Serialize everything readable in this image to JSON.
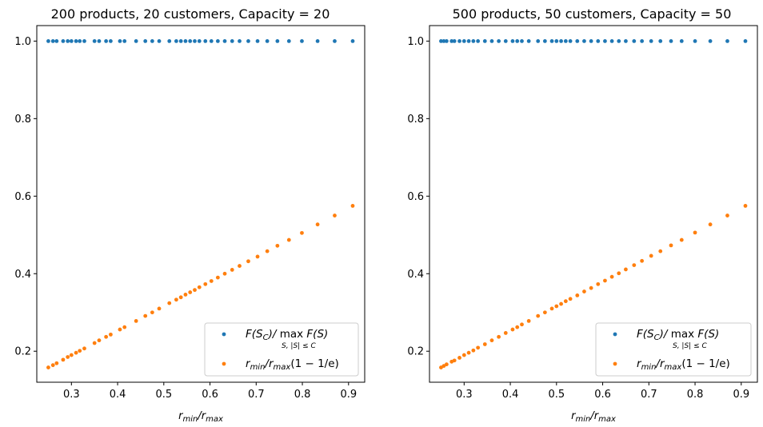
{
  "chart_data": [
    {
      "type": "scatter",
      "title": "200 products, 20 customers, Capacity = 20",
      "xlabel_main": "r",
      "xlabel_sub1": "min",
      "xlabel_sep": "/r",
      "xlabel_sub2": "max",
      "xlim": [
        0.225,
        0.935
      ],
      "ylim": [
        0.12,
        1.04
      ],
      "xticks": [
        0.3,
        0.4,
        0.5,
        0.6,
        0.7,
        0.8,
        0.9
      ],
      "xtick_labels": [
        "0.3",
        "0.4",
        "0.5",
        "0.6",
        "0.7",
        "0.8",
        "0.9"
      ],
      "yticks": [
        0.2,
        0.4,
        0.6,
        0.8,
        1.0
      ],
      "ytick_labels": [
        "0.2",
        "0.4",
        "0.6",
        "0.8",
        "1.0"
      ],
      "legend_position": "lower-right",
      "series": [
        {
          "name": "F(S_C)/ max_{S,|S|≤C} F(S)",
          "color": "#1f77b4",
          "x": [
            0.25,
            0.26,
            0.268,
            0.282,
            0.292,
            0.3,
            0.31,
            0.318,
            0.328,
            0.35,
            0.36,
            0.375,
            0.385,
            0.405,
            0.415,
            0.44,
            0.46,
            0.475,
            0.49,
            0.512,
            0.527,
            0.537,
            0.547,
            0.557,
            0.567,
            0.577,
            0.59,
            0.603,
            0.617,
            0.632,
            0.648,
            0.664,
            0.683,
            0.703,
            0.724,
            0.746,
            0.771,
            0.799,
            0.833,
            0.87,
            0.909
          ],
          "y": [
            1.0,
            1.0,
            1.0,
            1.0,
            1.0,
            1.0,
            1.0,
            1.0,
            1.0,
            1.0,
            1.0,
            1.0,
            1.0,
            1.0,
            1.0,
            1.0,
            1.0,
            1.0,
            1.0,
            1.0,
            1.0,
            1.0,
            1.0,
            1.0,
            1.0,
            1.0,
            1.0,
            1.0,
            1.0,
            1.0,
            1.0,
            1.0,
            1.0,
            1.0,
            1.0,
            1.0,
            1.0,
            1.0,
            1.0,
            1.0,
            1.0
          ]
        },
        {
          "name": "r_min/r_max(1 − 1/e)",
          "color": "#ff7f0e",
          "x": [
            0.25,
            0.26,
            0.268,
            0.282,
            0.292,
            0.3,
            0.31,
            0.318,
            0.328,
            0.35,
            0.36,
            0.375,
            0.385,
            0.405,
            0.415,
            0.44,
            0.46,
            0.475,
            0.49,
            0.512,
            0.527,
            0.537,
            0.547,
            0.557,
            0.567,
            0.577,
            0.59,
            0.603,
            0.617,
            0.632,
            0.648,
            0.664,
            0.683,
            0.703,
            0.724,
            0.746,
            0.771,
            0.799,
            0.833,
            0.87,
            0.909
          ],
          "y": [
            0.158,
            0.164,
            0.169,
            0.178,
            0.185,
            0.19,
            0.196,
            0.201,
            0.207,
            0.221,
            0.228,
            0.237,
            0.243,
            0.256,
            0.262,
            0.278,
            0.291,
            0.3,
            0.31,
            0.324,
            0.333,
            0.339,
            0.346,
            0.352,
            0.358,
            0.365,
            0.373,
            0.381,
            0.39,
            0.4,
            0.41,
            0.42,
            0.432,
            0.444,
            0.458,
            0.472,
            0.487,
            0.505,
            0.527,
            0.55,
            0.575
          ]
        }
      ]
    },
    {
      "type": "scatter",
      "title": "500 products, 50 customers, Capacity = 50",
      "xlabel_main": "r",
      "xlabel_sub1": "min",
      "xlabel_sep": "/r",
      "xlabel_sub2": "max",
      "xlim": [
        0.225,
        0.935
      ],
      "ylim": [
        0.12,
        1.04
      ],
      "xticks": [
        0.3,
        0.4,
        0.5,
        0.6,
        0.7,
        0.8,
        0.9
      ],
      "xtick_labels": [
        "0.3",
        "0.4",
        "0.5",
        "0.6",
        "0.7",
        "0.8",
        "0.9"
      ],
      "yticks": [
        0.2,
        0.4,
        0.6,
        0.8,
        1.0
      ],
      "ytick_labels": [
        "0.2",
        "0.4",
        "0.6",
        "0.8",
        "1.0"
      ],
      "legend_position": "lower-right",
      "series": [
        {
          "name": "F(S_C)/ max_{S,|S|≤C} F(S)",
          "color": "#1f77b4",
          "x": [
            0.25,
            0.256,
            0.262,
            0.273,
            0.279,
            0.29,
            0.3,
            0.31,
            0.32,
            0.33,
            0.345,
            0.36,
            0.375,
            0.39,
            0.405,
            0.415,
            0.425,
            0.44,
            0.46,
            0.475,
            0.49,
            0.5,
            0.51,
            0.52,
            0.53,
            0.545,
            0.56,
            0.575,
            0.59,
            0.605,
            0.62,
            0.635,
            0.65,
            0.668,
            0.685,
            0.705,
            0.725,
            0.748,
            0.771,
            0.8,
            0.833,
            0.87,
            0.909
          ],
          "y": [
            1.0,
            1.0,
            1.0,
            1.0,
            1.0,
            1.0,
            1.0,
            1.0,
            1.0,
            1.0,
            1.0,
            1.0,
            1.0,
            1.0,
            1.0,
            1.0,
            1.0,
            1.0,
            1.0,
            1.0,
            1.0,
            1.0,
            1.0,
            1.0,
            1.0,
            1.0,
            1.0,
            1.0,
            1.0,
            1.0,
            1.0,
            1.0,
            1.0,
            1.0,
            1.0,
            1.0,
            1.0,
            1.0,
            1.0,
            1.0,
            1.0,
            1.0,
            1.0
          ]
        },
        {
          "name": "r_min/r_max(1 − 1/e)",
          "color": "#ff7f0e",
          "x": [
            0.25,
            0.256,
            0.262,
            0.273,
            0.279,
            0.29,
            0.3,
            0.31,
            0.32,
            0.33,
            0.345,
            0.36,
            0.375,
            0.39,
            0.405,
            0.415,
            0.425,
            0.44,
            0.46,
            0.475,
            0.49,
            0.5,
            0.51,
            0.52,
            0.53,
            0.545,
            0.56,
            0.575,
            0.59,
            0.605,
            0.62,
            0.635,
            0.65,
            0.668,
            0.685,
            0.705,
            0.725,
            0.748,
            0.771,
            0.8,
            0.833,
            0.87,
            0.909
          ],
          "y": [
            0.158,
            0.162,
            0.166,
            0.173,
            0.176,
            0.183,
            0.19,
            0.196,
            0.202,
            0.209,
            0.218,
            0.228,
            0.237,
            0.247,
            0.256,
            0.262,
            0.269,
            0.278,
            0.291,
            0.3,
            0.31,
            0.316,
            0.322,
            0.329,
            0.335,
            0.344,
            0.354,
            0.363,
            0.373,
            0.382,
            0.392,
            0.401,
            0.411,
            0.422,
            0.433,
            0.446,
            0.458,
            0.473,
            0.487,
            0.506,
            0.527,
            0.55,
            0.575
          ]
        }
      ]
    }
  ]
}
